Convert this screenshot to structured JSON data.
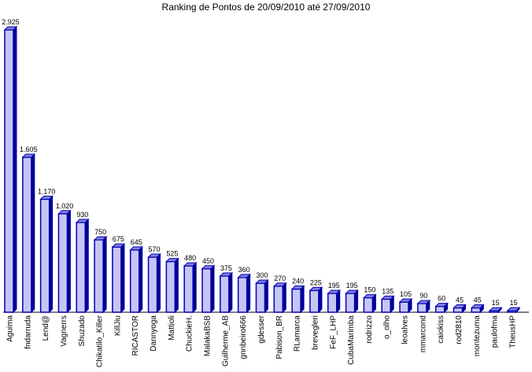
{
  "chart_data": {
    "type": "bar",
    "title": "Ranking de Pontos de 20/09/2010 até 27/09/2010",
    "xlabel": "",
    "ylabel": "",
    "ylim": [
      0,
      3000
    ],
    "grid": false,
    "legend": "none",
    "colors": {
      "bar_fill": "#c5c5f5",
      "bar_edge": "#0000b3",
      "bar_top": "#8080e0",
      "bar_side": "#00008c",
      "axis": "#000000"
    },
    "categories": [
      "Aguima",
      "fndarruda",
      "Lend@",
      "Vagnerrs",
      "Shuzado",
      "Chikatilo_Killer",
      "KillJiu",
      "RICASTOR",
      "Dannyoga",
      "Mattioli",
      "ChuckieH.",
      "MalakaBSB",
      "Guilherme_AB",
      "gnnbeiro666",
      "gdesser",
      "Pabison_BR",
      "RLamarca",
      "brevegleri",
      "FeF_LHP",
      "CubaMarimba",
      "rodrizzo",
      "o_olho",
      "leoalves",
      "mmarcond",
      "caiokiss",
      "rod2810",
      "montezuma",
      "paulofma",
      "TheusHP"
    ],
    "values": [
      2925,
      1605,
      1170,
      1020,
      930,
      750,
      675,
      645,
      570,
      525,
      480,
      450,
      375,
      360,
      300,
      270,
      240,
      225,
      195,
      195,
      150,
      135,
      105,
      90,
      60,
      45,
      45,
      15,
      15
    ],
    "value_labels": [
      "2.925",
      "1.605",
      "1.170",
      "1.020",
      "930",
      "750",
      "675",
      "645",
      "570",
      "525",
      "480",
      "450",
      "375",
      "360",
      "300",
      "270",
      "240",
      "225",
      "195",
      "195",
      "150",
      "135",
      "105",
      "90",
      "60",
      "45",
      "45",
      "15",
      "15"
    ]
  }
}
